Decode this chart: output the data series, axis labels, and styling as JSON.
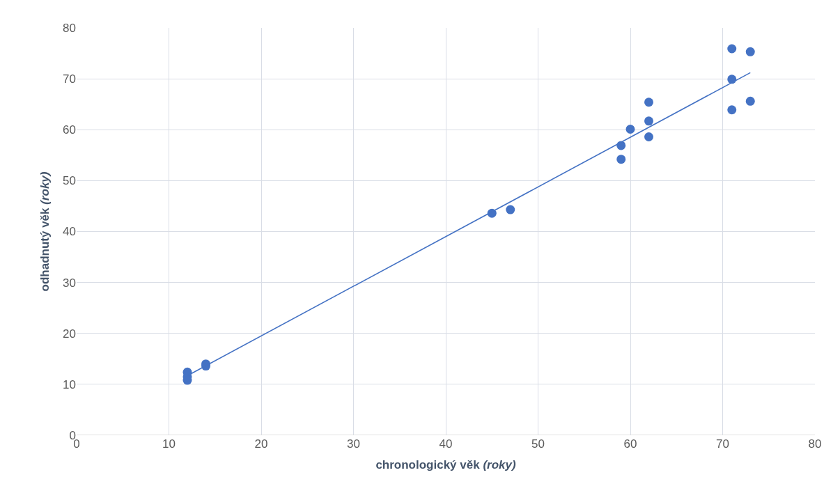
{
  "chart_data": {
    "type": "scatter",
    "xlabel": "chronologický věk (roky)",
    "ylabel": "odhadnutý věk (roky)",
    "xlim": [
      0,
      80
    ],
    "xticks": [
      0,
      10,
      20,
      30,
      40,
      50,
      60,
      70,
      80
    ],
    "ylim": [
      0,
      80
    ],
    "yticks": [
      0,
      10,
      20,
      30,
      40,
      50,
      60,
      70,
      80
    ],
    "grid": true,
    "legend": false,
    "series": [
      {
        "color": "#4472c4",
        "marker": "circle",
        "x": [
          12,
          12,
          12,
          14,
          14,
          45,
          47,
          59,
          59,
          60,
          62,
          62,
          62,
          71,
          71,
          71,
          73,
          73
        ],
        "values": [
          10.8,
          11.5,
          12.4,
          14.0,
          13.6,
          43.6,
          44.3,
          56.9,
          54.2,
          60.1,
          65.4,
          61.7,
          58.6,
          75.9,
          69.9,
          63.9,
          75.3,
          65.6
        ]
      },
      {
        "type": "line",
        "color": "#4472c4",
        "marker": "none",
        "line_style": "solid",
        "x": [
          12,
          73
        ],
        "values": [
          11.7,
          71.2
        ]
      }
    ]
  }
}
